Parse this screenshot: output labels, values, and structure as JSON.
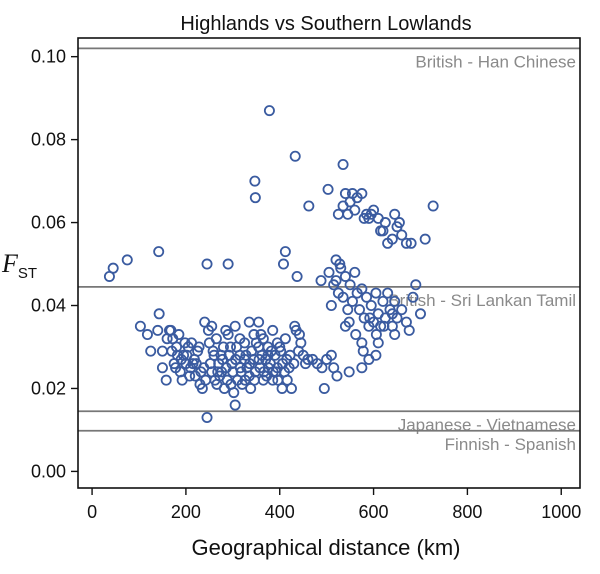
{
  "chart_data": {
    "type": "scatter",
    "title": "Highlands vs Southern Lowlands",
    "xlabel": "Geographical distance (km)",
    "ylabel_main": "F",
    "ylabel_sub": "ST",
    "xlim": [
      -30,
      1040
    ],
    "ylim": [
      -0.004,
      0.1045
    ],
    "xticks": [
      0,
      200,
      400,
      600,
      800,
      1000
    ],
    "xtick_labels": [
      "0",
      "200",
      "400",
      "600",
      "800",
      "1000"
    ],
    "yticks": [
      0.0,
      0.02,
      0.04,
      0.06,
      0.08,
      0.1
    ],
    "ytick_labels": [
      "0.00",
      "0.02",
      "0.04",
      "0.06",
      "0.08",
      "0.10"
    ],
    "marker_color": "#3a5ba0",
    "reference_lines": [
      {
        "label": "British - Han Chinese",
        "value": 0.102
      },
      {
        "label": "British - Sri Lankan Tamil",
        "value": 0.0445
      },
      {
        "label": "Japanese - Vietnamese",
        "value": 0.0145
      },
      {
        "label": "Finnish - Spanish",
        "value": 0.0098
      }
    ],
    "points": [
      [
        37,
        0.047
      ],
      [
        45,
        0.049
      ],
      [
        75,
        0.051
      ],
      [
        142,
        0.053
      ],
      [
        245,
        0.05
      ],
      [
        290,
        0.05
      ],
      [
        378,
        0.087
      ],
      [
        347,
        0.07
      ],
      [
        348,
        0.066
      ],
      [
        433,
        0.076
      ],
      [
        535,
        0.074
      ],
      [
        503,
        0.068
      ],
      [
        462,
        0.064
      ],
      [
        408,
        0.05
      ],
      [
        412,
        0.053
      ],
      [
        437,
        0.047
      ],
      [
        488,
        0.046
      ],
      [
        510,
        0.04
      ],
      [
        727,
        0.064
      ],
      [
        710,
        0.056
      ],
      [
        655,
        0.06
      ],
      [
        680,
        0.055
      ],
      [
        690,
        0.045
      ],
      [
        700,
        0.038
      ],
      [
        676,
        0.034
      ],
      [
        684,
        0.042
      ],
      [
        645,
        0.033
      ],
      [
        610,
        0.031
      ],
      [
        605,
        0.028
      ],
      [
        590,
        0.027
      ],
      [
        575,
        0.025
      ],
      [
        548,
        0.024
      ],
      [
        522,
        0.023
      ],
      [
        510,
        0.028
      ],
      [
        495,
        0.02
      ],
      [
        540,
        0.035
      ],
      [
        103,
        0.035
      ],
      [
        118,
        0.033
      ],
      [
        125,
        0.029
      ],
      [
        140,
        0.034
      ],
      [
        150,
        0.025
      ],
      [
        158,
        0.022
      ],
      [
        165,
        0.034
      ],
      [
        172,
        0.032
      ],
      [
        180,
        0.03
      ],
      [
        190,
        0.027
      ],
      [
        200,
        0.026
      ],
      [
        210,
        0.025
      ],
      [
        220,
        0.023
      ],
      [
        230,
        0.021
      ],
      [
        235,
        0.02
      ],
      [
        245,
        0.013
      ],
      [
        255,
        0.024
      ],
      [
        260,
        0.028
      ],
      [
        270,
        0.026
      ],
      [
        280,
        0.03
      ],
      [
        290,
        0.033
      ],
      [
        300,
        0.024
      ],
      [
        310,
        0.022
      ],
      [
        305,
        0.016
      ],
      [
        320,
        0.021
      ],
      [
        330,
        0.025
      ],
      [
        340,
        0.029
      ],
      [
        350,
        0.031
      ],
      [
        355,
        0.036
      ],
      [
        360,
        0.033
      ],
      [
        370,
        0.027
      ],
      [
        380,
        0.026
      ],
      [
        390,
        0.028
      ],
      [
        400,
        0.03
      ],
      [
        410,
        0.024
      ],
      [
        420,
        0.025
      ],
      [
        430,
        0.026
      ],
      [
        445,
        0.031
      ],
      [
        450,
        0.028
      ],
      [
        460,
        0.027
      ],
      [
        470,
        0.027
      ],
      [
        480,
        0.026
      ],
      [
        490,
        0.025
      ],
      [
        500,
        0.027
      ],
      [
        515,
        0.025
      ],
      [
        143,
        0.038
      ],
      [
        150,
        0.029
      ],
      [
        160,
        0.032
      ],
      [
        170,
        0.029
      ],
      [
        175,
        0.026
      ],
      [
        185,
        0.033
      ],
      [
        195,
        0.028
      ],
      [
        205,
        0.03
      ],
      [
        215,
        0.026
      ],
      [
        225,
        0.029
      ],
      [
        232,
        0.024
      ],
      [
        240,
        0.036
      ],
      [
        250,
        0.031
      ],
      [
        262,
        0.022
      ],
      [
        272,
        0.023
      ],
      [
        282,
        0.02
      ],
      [
        292,
        0.028
      ],
      [
        302,
        0.019
      ],
      [
        315,
        0.032
      ],
      [
        325,
        0.027
      ],
      [
        335,
        0.023
      ],
      [
        345,
        0.027
      ],
      [
        358,
        0.025
      ],
      [
        365,
        0.022
      ],
      [
        375,
        0.03
      ],
      [
        385,
        0.022
      ],
      [
        395,
        0.025
      ],
      [
        405,
        0.02
      ],
      [
        415,
        0.027
      ],
      [
        425,
        0.02
      ],
      [
        435,
        0.034
      ],
      [
        440,
        0.029
      ],
      [
        455,
        0.026
      ],
      [
        168,
        0.034
      ],
      [
        178,
        0.025
      ],
      [
        188,
        0.024
      ],
      [
        198,
        0.031
      ],
      [
        208,
        0.023
      ],
      [
        218,
        0.027
      ],
      [
        228,
        0.03
      ],
      [
        238,
        0.025
      ],
      [
        248,
        0.034
      ],
      [
        258,
        0.029
      ],
      [
        268,
        0.024
      ],
      [
        278,
        0.027
      ],
      [
        288,
        0.022
      ],
      [
        298,
        0.026
      ],
      [
        308,
        0.03
      ],
      [
        318,
        0.024
      ],
      [
        328,
        0.028
      ],
      [
        338,
        0.02
      ],
      [
        348,
        0.024
      ],
      [
        362,
        0.028
      ],
      [
        372,
        0.023
      ],
      [
        382,
        0.029
      ],
      [
        392,
        0.024
      ],
      [
        402,
        0.029
      ],
      [
        412,
        0.032
      ],
      [
        422,
        0.028
      ],
      [
        432,
        0.035
      ],
      [
        442,
        0.033
      ],
      [
        182,
        0.028
      ],
      [
        192,
        0.022
      ],
      [
        202,
        0.028
      ],
      [
        212,
        0.031
      ],
      [
        222,
        0.026
      ],
      [
        242,
        0.022
      ],
      [
        252,
        0.026
      ],
      [
        266,
        0.021
      ],
      [
        276,
        0.024
      ],
      [
        286,
        0.025
      ],
      [
        296,
        0.021
      ],
      [
        306,
        0.027
      ],
      [
        316,
        0.025
      ],
      [
        326,
        0.022
      ],
      [
        336,
        0.026
      ],
      [
        346,
        0.022
      ],
      [
        356,
        0.027
      ],
      [
        366,
        0.024
      ],
      [
        376,
        0.025
      ],
      [
        386,
        0.024
      ],
      [
        396,
        0.022
      ],
      [
        406,
        0.026
      ],
      [
        416,
        0.022
      ],
      [
        255,
        0.035
      ],
      [
        265,
        0.032
      ],
      [
        275,
        0.028
      ],
      [
        285,
        0.034
      ],
      [
        295,
        0.03
      ],
      [
        305,
        0.035
      ],
      [
        315,
        0.028
      ],
      [
        325,
        0.031
      ],
      [
        335,
        0.036
      ],
      [
        345,
        0.033
      ],
      [
        355,
        0.03
      ],
      [
        365,
        0.032
      ],
      [
        375,
        0.028
      ],
      [
        385,
        0.034
      ],
      [
        395,
        0.031
      ],
      [
        505,
        0.048
      ],
      [
        515,
        0.045
      ],
      [
        520,
        0.051
      ],
      [
        525,
        0.043
      ],
      [
        530,
        0.049
      ],
      [
        535,
        0.042
      ],
      [
        540,
        0.047
      ],
      [
        545,
        0.039
      ],
      [
        550,
        0.045
      ],
      [
        555,
        0.041
      ],
      [
        560,
        0.048
      ],
      [
        565,
        0.043
      ],
      [
        570,
        0.039
      ],
      [
        575,
        0.044
      ],
      [
        580,
        0.037
      ],
      [
        585,
        0.042
      ],
      [
        590,
        0.035
      ],
      [
        595,
        0.04
      ],
      [
        600,
        0.036
      ],
      [
        605,
        0.043
      ],
      [
        610,
        0.038
      ],
      [
        615,
        0.035
      ],
      [
        620,
        0.041
      ],
      [
        625,
        0.037
      ],
      [
        630,
        0.043
      ],
      [
        635,
        0.039
      ],
      [
        640,
        0.035
      ],
      [
        645,
        0.041
      ],
      [
        650,
        0.037
      ],
      [
        660,
        0.039
      ],
      [
        670,
        0.036
      ],
      [
        520,
        0.046
      ],
      [
        528,
        0.05
      ],
      [
        548,
        0.036
      ],
      [
        562,
        0.033
      ],
      [
        578,
        0.029
      ],
      [
        592,
        0.037
      ],
      [
        606,
        0.033
      ],
      [
        622,
        0.035
      ],
      [
        640,
        0.038
      ],
      [
        575,
        0.031
      ],
      [
        525,
        0.062
      ],
      [
        535,
        0.064
      ],
      [
        540,
        0.067
      ],
      [
        545,
        0.062
      ],
      [
        550,
        0.065
      ],
      [
        555,
        0.067
      ],
      [
        560,
        0.063
      ],
      [
        565,
        0.066
      ],
      [
        575,
        0.067
      ],
      [
        580,
        0.061
      ],
      [
        585,
        0.062
      ],
      [
        590,
        0.061
      ],
      [
        595,
        0.062
      ],
      [
        600,
        0.063
      ],
      [
        610,
        0.061
      ],
      [
        615,
        0.058
      ],
      [
        620,
        0.058
      ],
      [
        625,
        0.06
      ],
      [
        630,
        0.055
      ],
      [
        640,
        0.056
      ],
      [
        645,
        0.062
      ],
      [
        650,
        0.059
      ],
      [
        660,
        0.057
      ],
      [
        670,
        0.055
      ]
    ]
  }
}
